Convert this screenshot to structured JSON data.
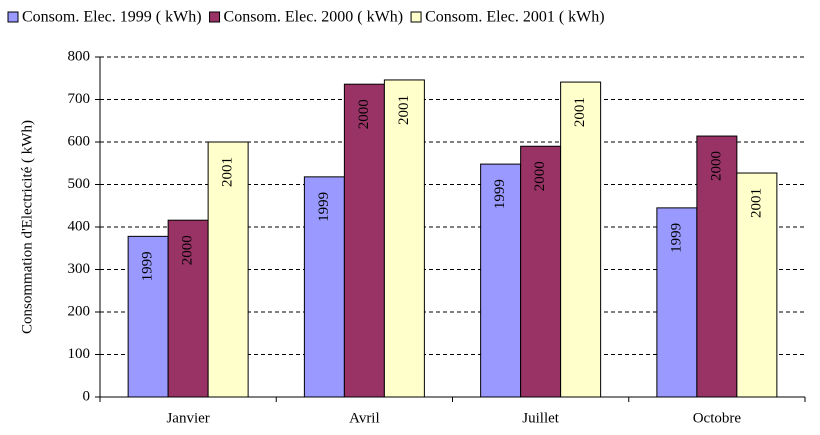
{
  "chart_data": {
    "type": "bar",
    "ylabel": "Consommation d'Electricité ( kWh)",
    "categories": [
      "Janvier",
      "Avril",
      "Juillet",
      "Octobre"
    ],
    "series": [
      {
        "name": "Consom. Elec. 1999 ( kWh)",
        "color": "#9999ff",
        "bar_label": "1999",
        "values": [
          378,
          518,
          548,
          445
        ]
      },
      {
        "name": "Consom. Elec. 2000 ( kWh)",
        "color": "#993366",
        "bar_label": "2000",
        "values": [
          416,
          736,
          590,
          614
        ]
      },
      {
        "name": "Consom. Elec. 2001 ( kWh)",
        "color": "#ffffcc",
        "bar_label": "2001",
        "values": [
          600,
          746,
          741,
          527
        ]
      }
    ],
    "ylim": [
      0,
      800
    ],
    "yticks": [
      0,
      100,
      200,
      300,
      400,
      500,
      600,
      700,
      800
    ],
    "grid": true
  }
}
